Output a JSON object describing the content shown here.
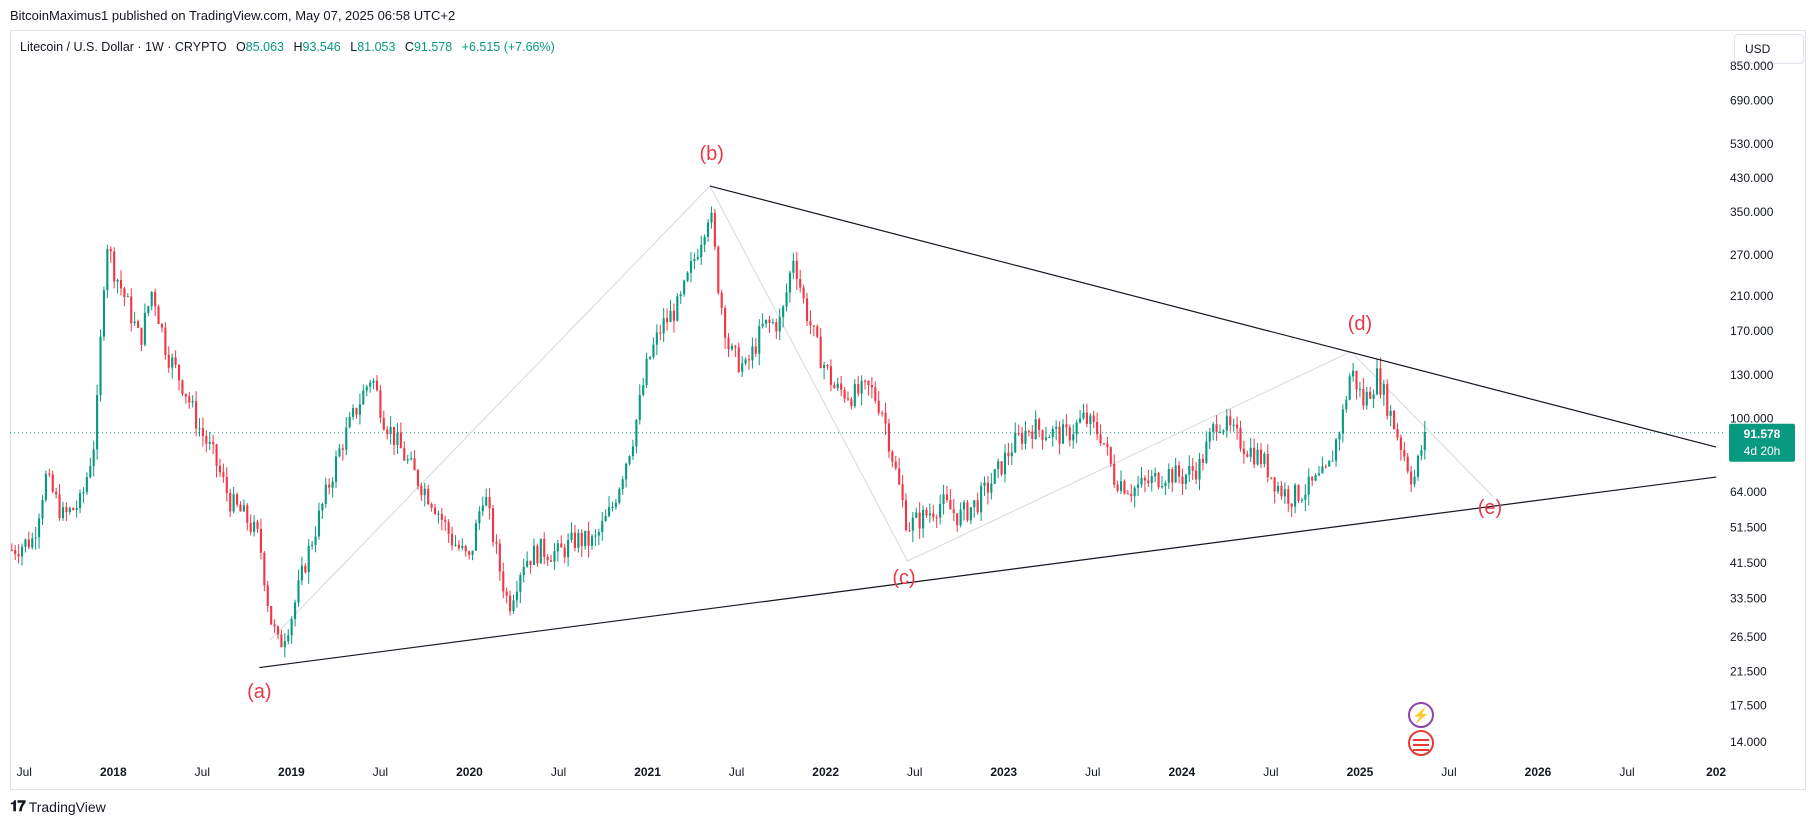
{
  "publisher_line": "BitcoinMaximus1 published on TradingView.com, May 07, 2025 06:58 UTC+2",
  "legend": {
    "symbol": "Litecoin / U.S. Dollar · 1W · CRYPTO",
    "o_label": "O",
    "o_value": "85.063",
    "h_label": "H",
    "h_value": "93.546",
    "l_label": "L",
    "l_value": "81.053",
    "c_label": "C",
    "c_value": "91.578",
    "change": "+6.515 (+7.66%)"
  },
  "currency_button": "USD",
  "footer_logo": "TradingView",
  "price_tag": {
    "price": "91.578",
    "countdown": "4d 20h"
  },
  "icons": {
    "bolt": "lightning-icon",
    "flag": "us-flag-icon"
  },
  "colors": {
    "up": "#089981",
    "down": "#f23645",
    "wave_label": "#e53a4b",
    "tag": "#089981"
  },
  "chart_data": {
    "type": "candlestick",
    "scale": "log",
    "y_ticks": [
      850,
      690,
      530,
      430,
      350,
      270,
      210,
      170,
      130,
      100,
      64,
      51.5,
      41.5,
      33.5,
      26.5,
      21.5,
      17.5,
      14
    ],
    "y_tick_labels": [
      "850.000",
      "690.000",
      "530.000",
      "430.000",
      "350.000",
      "270.000",
      "210.000",
      "170.000",
      "130.000",
      "100.000",
      "64.000",
      "51.500",
      "41.500",
      "33.500",
      "26.500",
      "21.500",
      "17.500",
      "14.000"
    ],
    "x_ticks": [
      {
        "t": 2017.5,
        "label": "Jul",
        "bold": false
      },
      {
        "t": 2018.0,
        "label": "2018",
        "bold": true
      },
      {
        "t": 2018.5,
        "label": "Jul",
        "bold": false
      },
      {
        "t": 2019.0,
        "label": "2019",
        "bold": true
      },
      {
        "t": 2019.5,
        "label": "Jul",
        "bold": false
      },
      {
        "t": 2020.0,
        "label": "2020",
        "bold": true
      },
      {
        "t": 2020.5,
        "label": "Jul",
        "bold": false
      },
      {
        "t": 2021.0,
        "label": "2021",
        "bold": true
      },
      {
        "t": 2021.5,
        "label": "Jul",
        "bold": false
      },
      {
        "t": 2022.0,
        "label": "2022",
        "bold": true
      },
      {
        "t": 2022.5,
        "label": "Jul",
        "bold": false
      },
      {
        "t": 2023.0,
        "label": "2023",
        "bold": true
      },
      {
        "t": 2023.5,
        "label": "Jul",
        "bold": false
      },
      {
        "t": 2024.0,
        "label": "2024",
        "bold": true
      },
      {
        "t": 2024.5,
        "label": "Jul",
        "bold": false
      },
      {
        "t": 2025.0,
        "label": "2025",
        "bold": true
      },
      {
        "t": 2025.5,
        "label": "Jul",
        "bold": false
      },
      {
        "t": 2026.0,
        "label": "2026",
        "bold": true
      },
      {
        "t": 2026.5,
        "label": "Jul",
        "bold": false
      },
      {
        "t": 2027.0,
        "label": "202",
        "bold": true
      }
    ],
    "current_price": 91.578,
    "price_path": [
      [
        2017.43,
        45
      ],
      [
        2017.55,
        48
      ],
      [
        2017.62,
        70
      ],
      [
        2017.72,
        55
      ],
      [
        2017.82,
        60
      ],
      [
        2017.9,
        90
      ],
      [
        2017.96,
        300
      ],
      [
        2018.0,
        250
      ],
      [
        2018.08,
        200
      ],
      [
        2018.15,
        160
      ],
      [
        2018.22,
        220
      ],
      [
        2018.3,
        150
      ],
      [
        2018.4,
        120
      ],
      [
        2018.48,
        95
      ],
      [
        2018.56,
        80
      ],
      [
        2018.66,
        60
      ],
      [
        2018.74,
        55
      ],
      [
        2018.82,
        48
      ],
      [
        2018.88,
        30
      ],
      [
        2018.93,
        25
      ],
      [
        2019.0,
        30
      ],
      [
        2019.08,
        42
      ],
      [
        2019.18,
        60
      ],
      [
        2019.28,
        85
      ],
      [
        2019.38,
        110
      ],
      [
        2019.45,
        130
      ],
      [
        2019.52,
        100
      ],
      [
        2019.6,
        85
      ],
      [
        2019.7,
        70
      ],
      [
        2019.8,
        60
      ],
      [
        2019.9,
        48
      ],
      [
        2020.0,
        42
      ],
      [
        2020.08,
        65
      ],
      [
        2020.17,
        40
      ],
      [
        2020.22,
        32
      ],
      [
        2020.3,
        42
      ],
      [
        2020.4,
        45
      ],
      [
        2020.5,
        44
      ],
      [
        2020.6,
        48
      ],
      [
        2020.7,
        47
      ],
      [
        2020.8,
        58
      ],
      [
        2020.92,
        90
      ],
      [
        2021.0,
        140
      ],
      [
        2021.08,
        175
      ],
      [
        2021.18,
        200
      ],
      [
        2021.28,
        280
      ],
      [
        2021.35,
        360
      ],
      [
        2021.4,
        220
      ],
      [
        2021.46,
        150
      ],
      [
        2021.55,
        135
      ],
      [
        2021.65,
        175
      ],
      [
        2021.75,
        180
      ],
      [
        2021.82,
        270
      ],
      [
        2021.88,
        200
      ],
      [
        2021.96,
        150
      ],
      [
        2022.05,
        120
      ],
      [
        2022.15,
        115
      ],
      [
        2022.25,
        120
      ],
      [
        2022.32,
        105
      ],
      [
        2022.4,
        70
      ],
      [
        2022.46,
        52
      ],
      [
        2022.55,
        55
      ],
      [
        2022.65,
        60
      ],
      [
        2022.75,
        55
      ],
      [
        2022.85,
        60
      ],
      [
        2022.95,
        70
      ],
      [
        2023.05,
        85
      ],
      [
        2023.15,
        95
      ],
      [
        2023.25,
        92
      ],
      [
        2023.35,
        90
      ],
      [
        2023.45,
        100
      ],
      [
        2023.55,
        90
      ],
      [
        2023.62,
        70
      ],
      [
        2023.72,
        65
      ],
      [
        2023.82,
        68
      ],
      [
        2023.92,
        72
      ],
      [
        2024.0,
        70
      ],
      [
        2024.1,
        75
      ],
      [
        2024.2,
        100
      ],
      [
        2024.25,
        95
      ],
      [
        2024.35,
        85
      ],
      [
        2024.45,
        78
      ],
      [
        2024.55,
        65
      ],
      [
        2024.62,
        62
      ],
      [
        2024.72,
        66
      ],
      [
        2024.82,
        72
      ],
      [
        2024.9,
        100
      ],
      [
        2024.95,
        135
      ],
      [
        2025.02,
        110
      ],
      [
        2025.1,
        130
      ],
      [
        2025.18,
        100
      ],
      [
        2025.25,
        80
      ],
      [
        2025.3,
        68
      ],
      [
        2025.35,
        85
      ],
      [
        2025.38,
        91.578
      ]
    ],
    "trendlines": [
      {
        "name": "upper",
        "from": [
          2021.35,
          410
        ],
        "to": [
          2027.0,
          84
        ]
      },
      {
        "name": "lower",
        "from": [
          2018.82,
          22
        ],
        "to": [
          2027.0,
          70
        ]
      }
    ],
    "wave_path": [
      [
        2018.88,
        26
      ],
      [
        2021.35,
        410
      ],
      [
        2022.46,
        42
      ],
      [
        2024.95,
        150
      ],
      [
        2025.75,
        62
      ]
    ],
    "wave_labels": [
      {
        "label": "(a)",
        "t": 2018.82,
        "v": 18.3
      },
      {
        "label": "(b)",
        "t": 2021.36,
        "v": 480
      },
      {
        "label": "(c)",
        "t": 2022.44,
        "v": 36.5
      },
      {
        "label": "(d)",
        "t": 2025.0,
        "v": 171
      },
      {
        "label": "(e)",
        "t": 2025.73,
        "v": 56
      }
    ]
  }
}
